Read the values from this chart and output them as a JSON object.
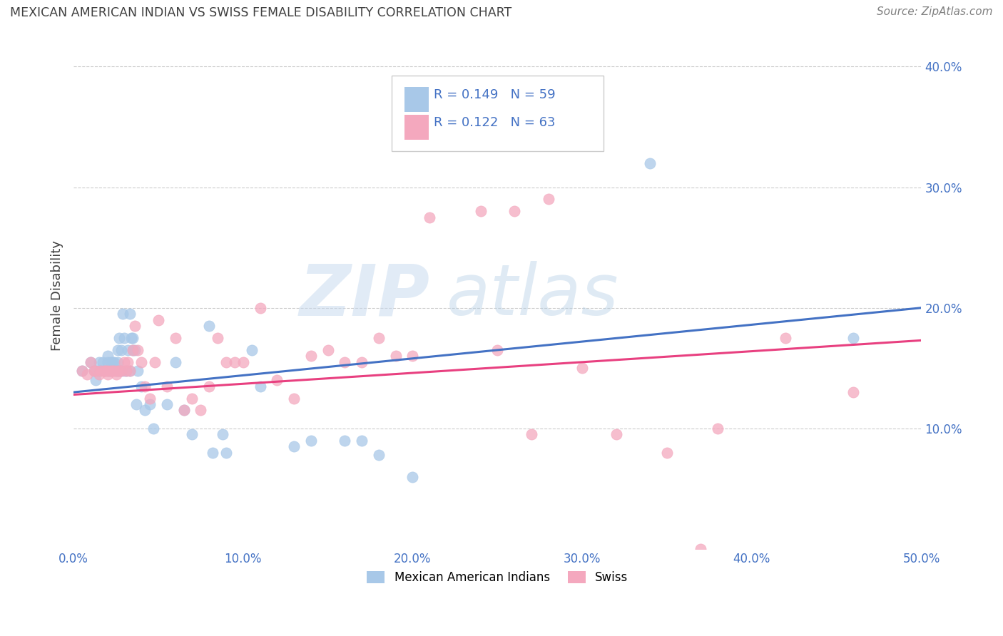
{
  "title": "MEXICAN AMERICAN INDIAN VS SWISS FEMALE DISABILITY CORRELATION CHART",
  "source": "Source: ZipAtlas.com",
  "ylabel": "Female Disability",
  "xlim": [
    0.0,
    0.5
  ],
  "ylim": [
    0.0,
    0.42
  ],
  "xticks": [
    0.0,
    0.1,
    0.2,
    0.3,
    0.4,
    0.5
  ],
  "yticks": [
    0.1,
    0.2,
    0.3,
    0.4
  ],
  "xtick_labels": [
    "0.0%",
    "10.0%",
    "20.0%",
    "30.0%",
    "40.0%",
    "50.0%"
  ],
  "ytick_labels": [
    "10.0%",
    "20.0%",
    "30.0%",
    "40.0%"
  ],
  "blue_color": "#A8C8E8",
  "pink_color": "#F4A8BE",
  "blue_line_color": "#4472C4",
  "pink_line_color": "#E84080",
  "legend_label1": "Mexican American Indians",
  "legend_label2": "Swiss",
  "title_color": "#404040",
  "axis_color": "#4472C4",
  "watermark_zip": "ZIP",
  "watermark_atlas": "atlas",
  "blue_scatter_x": [
    0.005,
    0.01,
    0.012,
    0.013,
    0.015,
    0.015,
    0.017,
    0.018,
    0.02,
    0.02,
    0.02,
    0.021,
    0.022,
    0.022,
    0.023,
    0.024,
    0.025,
    0.025,
    0.026,
    0.026,
    0.027,
    0.027,
    0.028,
    0.028,
    0.029,
    0.03,
    0.03,
    0.031,
    0.032,
    0.033,
    0.033,
    0.034,
    0.035,
    0.035,
    0.036,
    0.037,
    0.038,
    0.04,
    0.042,
    0.045,
    0.047,
    0.055,
    0.06,
    0.065,
    0.07,
    0.08,
    0.082,
    0.088,
    0.09,
    0.105,
    0.11,
    0.13,
    0.14,
    0.16,
    0.17,
    0.18,
    0.2,
    0.34,
    0.46
  ],
  "blue_scatter_y": [
    0.148,
    0.155,
    0.148,
    0.14,
    0.148,
    0.155,
    0.155,
    0.148,
    0.148,
    0.155,
    0.16,
    0.148,
    0.148,
    0.155,
    0.155,
    0.155,
    0.148,
    0.148,
    0.155,
    0.165,
    0.175,
    0.148,
    0.148,
    0.165,
    0.195,
    0.175,
    0.148,
    0.148,
    0.165,
    0.148,
    0.195,
    0.175,
    0.175,
    0.165,
    0.165,
    0.12,
    0.148,
    0.135,
    0.115,
    0.12,
    0.1,
    0.12,
    0.155,
    0.115,
    0.095,
    0.185,
    0.08,
    0.095,
    0.08,
    0.165,
    0.135,
    0.085,
    0.09,
    0.09,
    0.09,
    0.078,
    0.06,
    0.32,
    0.175
  ],
  "pink_scatter_x": [
    0.005,
    0.008,
    0.01,
    0.012,
    0.013,
    0.015,
    0.016,
    0.018,
    0.019,
    0.02,
    0.02,
    0.022,
    0.023,
    0.024,
    0.025,
    0.026,
    0.027,
    0.028,
    0.03,
    0.031,
    0.032,
    0.033,
    0.035,
    0.036,
    0.038,
    0.04,
    0.042,
    0.045,
    0.048,
    0.05,
    0.055,
    0.06,
    0.065,
    0.07,
    0.075,
    0.08,
    0.085,
    0.09,
    0.095,
    0.1,
    0.11,
    0.12,
    0.13,
    0.14,
    0.15,
    0.16,
    0.17,
    0.18,
    0.19,
    0.2,
    0.21,
    0.24,
    0.25,
    0.26,
    0.27,
    0.28,
    0.3,
    0.32,
    0.35,
    0.37,
    0.38,
    0.42,
    0.46
  ],
  "pink_scatter_y": [
    0.148,
    0.145,
    0.155,
    0.148,
    0.148,
    0.145,
    0.148,
    0.148,
    0.148,
    0.145,
    0.148,
    0.148,
    0.148,
    0.148,
    0.145,
    0.148,
    0.148,
    0.148,
    0.155,
    0.148,
    0.155,
    0.148,
    0.165,
    0.185,
    0.165,
    0.155,
    0.135,
    0.125,
    0.155,
    0.19,
    0.135,
    0.175,
    0.115,
    0.125,
    0.115,
    0.135,
    0.175,
    0.155,
    0.155,
    0.155,
    0.2,
    0.14,
    0.125,
    0.16,
    0.165,
    0.155,
    0.155,
    0.175,
    0.16,
    0.16,
    0.275,
    0.28,
    0.165,
    0.28,
    0.095,
    0.29,
    0.15,
    0.095,
    0.08,
    0.0,
    0.1,
    0.175,
    0.13
  ]
}
